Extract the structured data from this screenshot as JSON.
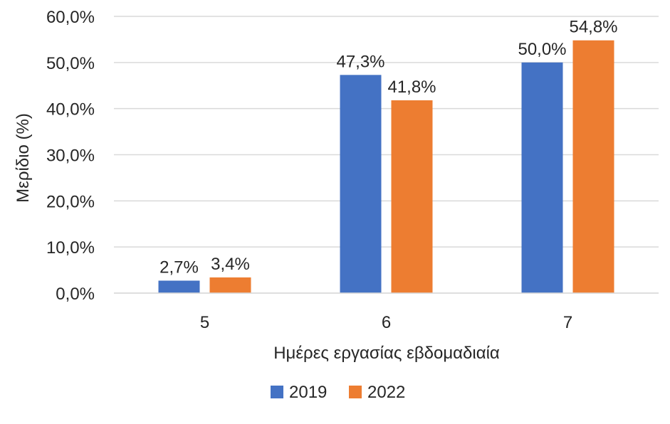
{
  "chart_data": {
    "type": "bar",
    "title": "",
    "xlabel": "Ημέρες εργασίας εβδομαδιαία",
    "ylabel": "Μερίδιο (%)",
    "categories": [
      "5",
      "6",
      "7"
    ],
    "series": [
      {
        "name": "2019",
        "color": "#4472C4",
        "values": [
          2.7,
          47.3,
          50.0
        ],
        "labels": [
          "2,7%",
          "47,3%",
          "50,0%"
        ]
      },
      {
        "name": "2022",
        "color": "#ED7D31",
        "values": [
          3.4,
          41.8,
          54.8
        ],
        "labels": [
          "3,4%",
          "41,8%",
          "54,8%"
        ]
      }
    ],
    "ylim": [
      0,
      60
    ],
    "yticks": [
      0,
      10,
      20,
      30,
      40,
      50,
      60
    ],
    "ytick_labels": [
      "0,0%",
      "10,0%",
      "20,0%",
      "30,0%",
      "40,0%",
      "50,0%",
      "60,0%"
    ],
    "grid": true,
    "legend_position": "bottom",
    "colors": {
      "gridline": "#D9D9D9",
      "axis_line": "#D9D9D9",
      "text": "#262626"
    }
  }
}
